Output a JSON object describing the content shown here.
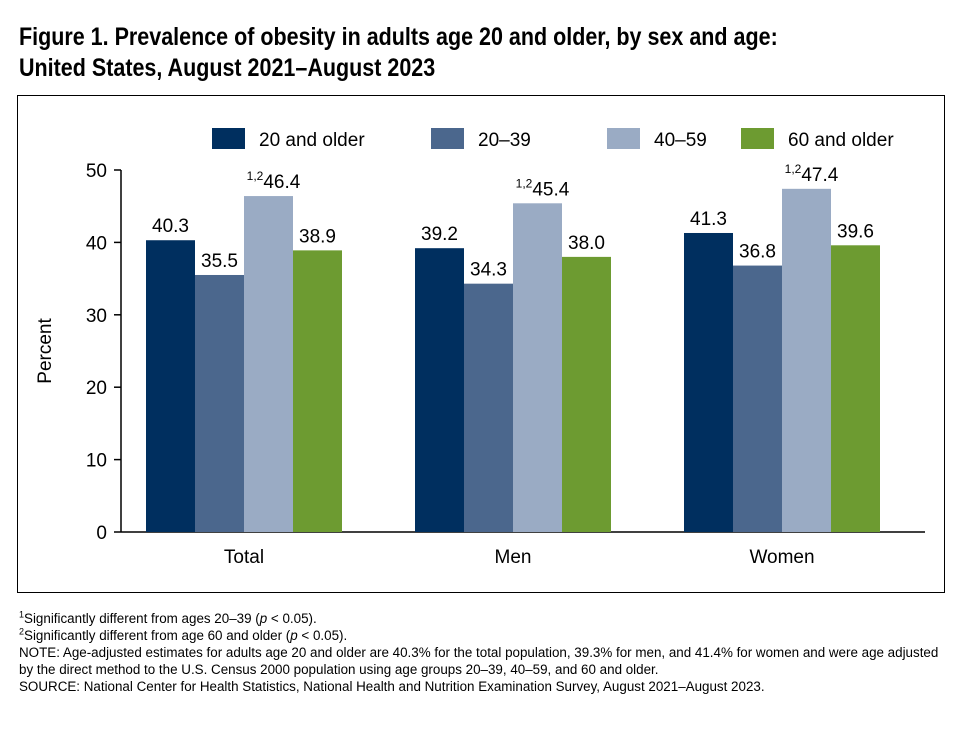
{
  "title_line1": "Figure 1. Prevalence of obesity in adults age 20 and older, by sex and age:",
  "title_line2": "United States, August 2021–August 2023",
  "chart_data": {
    "type": "bar",
    "categories": [
      "Total",
      "Men",
      "Women"
    ],
    "series": [
      {
        "name": "20 and older",
        "color": "#002f5f",
        "values": [
          40.3,
          39.2,
          41.3
        ],
        "labels": [
          "40.3",
          "39.2",
          "41.3"
        ],
        "markers": [
          "",
          "",
          ""
        ]
      },
      {
        "name": "20–39",
        "color": "#4b678d",
        "values": [
          35.5,
          34.3,
          36.8
        ],
        "labels": [
          "35.5",
          "34.3",
          "36.8"
        ],
        "markers": [
          "",
          "",
          ""
        ]
      },
      {
        "name": "40–59",
        "color": "#9aabc4",
        "values": [
          46.4,
          45.4,
          47.4
        ],
        "labels": [
          "46.4",
          "45.4",
          "47.4"
        ],
        "markers": [
          "1,2",
          "1,2",
          "1,2"
        ]
      },
      {
        "name": "60 and older",
        "color": "#6d9b31",
        "values": [
          38.9,
          38.0,
          39.6
        ],
        "labels": [
          "38.9",
          "38.0",
          "39.6"
        ],
        "markers": [
          "",
          "",
          ""
        ]
      }
    ],
    "ylabel": "Percent",
    "xlabel": "",
    "ylim": [
      0,
      50
    ],
    "yticks": [
      0,
      10,
      20,
      30,
      40,
      50
    ],
    "grid": false,
    "legend": "top"
  },
  "footnotes": {
    "fn1_mark": "1",
    "fn1_pre": "Significantly different from ages 20–39 (",
    "fn1_p": "p",
    "fn1_post": " < 0.05).",
    "fn2_mark": "2",
    "fn2_pre": "Significantly different from age 60 and older (",
    "fn2_p": "p",
    "fn2_post": " < 0.05).",
    "note": "NOTE: Age-adjusted estimates for adults age 20 and older are 40.3% for the total population, 39.3% for men, and 41.4% for women and were age adjusted by the direct method to the U.S. Census 2000 population using age groups 20–39, 40–59, and 60 and older.",
    "source": "SOURCE: National Center for Health Statistics, National Health and Nutrition Examination Survey, August 2021–August 2023."
  }
}
